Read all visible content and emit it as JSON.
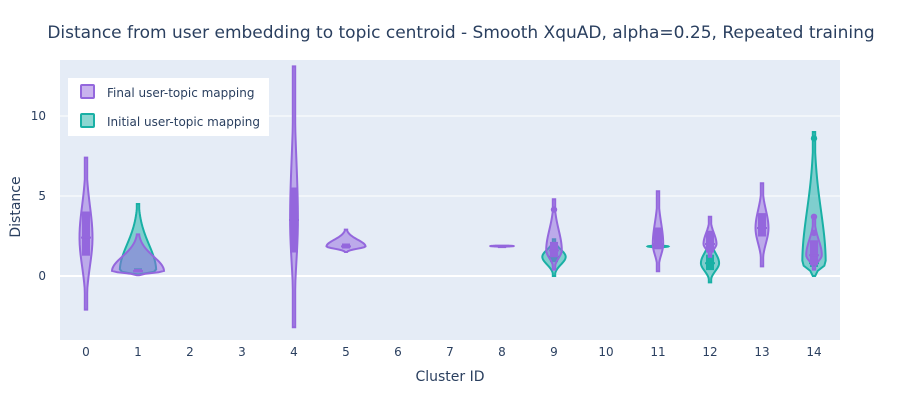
{
  "chart_data": {
    "type": "violin",
    "title": "Distance from user embedding to topic centroid - Smooth XquAD, alpha=0.25, Repeated training",
    "xlabel": "Cluster ID",
    "ylabel": "Distance",
    "categories": [
      "0",
      "1",
      "2",
      "3",
      "4",
      "5",
      "6",
      "7",
      "8",
      "9",
      "10",
      "11",
      "12",
      "13",
      "14"
    ],
    "y_ticks": [
      0,
      5,
      10
    ],
    "ylim": [
      -4,
      13.5
    ],
    "grid": true,
    "legend_position": "top-left",
    "colors": {
      "final": "#9467dd",
      "initial": "#19b0a5",
      "plot_bg": "#e5ecf6"
    },
    "series": [
      {
        "name": "Final user-topic mapping",
        "key": "final",
        "violins": [
          {
            "cat": "0",
            "min": -2.1,
            "max": 7.4,
            "q1": 1.3,
            "median": 2.4,
            "q3": 4.0,
            "width": 0.25
          },
          {
            "cat": "1",
            "min": 0.05,
            "max": 2.6,
            "q1": 0.25,
            "median": 0.3,
            "q3": 0.4,
            "width": 1.0
          },
          {
            "cat": "4",
            "min": -3.2,
            "max": 13.1,
            "q1": 1.5,
            "median": 3.5,
            "q3": 5.5,
            "width": 0.15
          },
          {
            "cat": "5",
            "min": 1.5,
            "max": 2.9,
            "q1": 1.75,
            "median": 1.85,
            "q3": 2.0,
            "width": 0.75
          },
          {
            "cat": "8",
            "min": 1.85,
            "max": 1.9,
            "q1": 1.85,
            "median": 1.87,
            "q3": 1.9,
            "width": 0.45
          },
          {
            "cat": "9",
            "min": 0.4,
            "max": 4.8,
            "q1": 1.2,
            "median": 1.6,
            "q3": 2.1,
            "width": 0.3
          },
          {
            "cat": "11",
            "min": 0.3,
            "max": 5.3,
            "q1": 1.7,
            "median": 2.0,
            "q3": 3.0,
            "width": 0.2
          },
          {
            "cat": "12",
            "min": 1.2,
            "max": 3.7,
            "q1": 1.5,
            "median": 2.0,
            "q3": 2.8,
            "width": 0.25
          },
          {
            "cat": "13",
            "min": 0.6,
            "max": 5.8,
            "q1": 2.5,
            "median": 3.0,
            "q3": 3.9,
            "width": 0.25
          },
          {
            "cat": "14",
            "min": 0.4,
            "max": 3.7,
            "q1": 0.7,
            "median": 1.3,
            "q3": 2.2,
            "width": 0.3
          }
        ],
        "outliers": [
          {
            "cat": "9",
            "y": 4.15
          },
          {
            "cat": "14",
            "y": 3.7
          },
          {
            "cat": "14",
            "y": 2.7
          }
        ]
      },
      {
        "name": "Initial user-topic mapping",
        "key": "initial",
        "violins": [
          {
            "cat": "1",
            "min": 0.1,
            "max": 4.5,
            "q1": 0.25,
            "median": 0.3,
            "q3": 0.45,
            "width": 0.7
          },
          {
            "cat": "9",
            "min": 0.0,
            "max": 2.3,
            "q1": 0.9,
            "median": 1.2,
            "q3": 1.5,
            "width": 0.45
          },
          {
            "cat": "11",
            "min": 1.75,
            "max": 1.95,
            "q1": 1.8,
            "median": 1.85,
            "q3": 1.9,
            "width": 0.4
          },
          {
            "cat": "12",
            "min": -0.4,
            "max": 2.4,
            "q1": 0.4,
            "median": 0.8,
            "q3": 1.3,
            "width": 0.35
          },
          {
            "cat": "14",
            "min": 0.0,
            "max": 9.0,
            "q1": 0.6,
            "median": 0.8,
            "q3": 1.1,
            "width": 0.45
          }
        ],
        "outliers": [
          {
            "cat": "14",
            "y": 8.6
          }
        ]
      }
    ]
  }
}
